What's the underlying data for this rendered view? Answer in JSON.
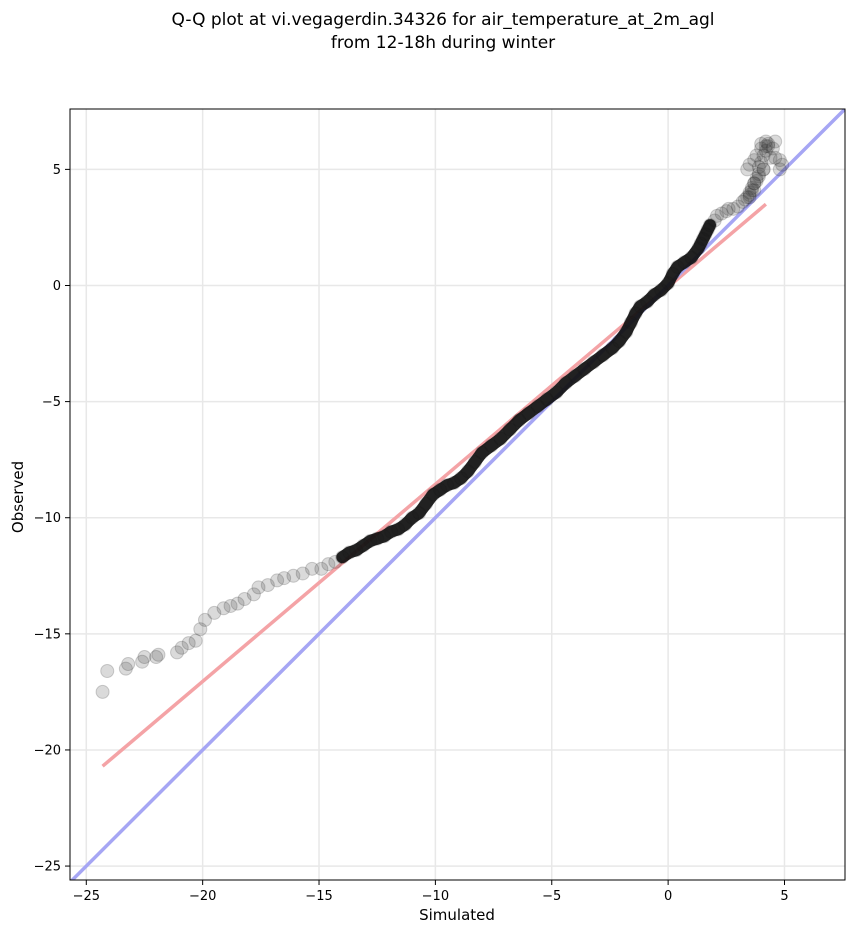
{
  "chart_data": {
    "type": "scatter",
    "title_lines": [
      "Q-Q plot at vi.vegagerdin.34326 for air_temperature_at_2m_agl",
      "from 12-18h during winter"
    ],
    "xlabel": "Simulated",
    "ylabel": "Observed",
    "xlim": [
      -25.7,
      7.6
    ],
    "ylim": [
      -25.6,
      7.6
    ],
    "xticks": [
      -25,
      -20,
      -15,
      -10,
      -5,
      0,
      5
    ],
    "yticks": [
      -25,
      -20,
      -15,
      -10,
      -5,
      0,
      5
    ],
    "xtick_labels": [
      "−25",
      "−20",
      "−15",
      "−10",
      "−5",
      "0",
      "5"
    ],
    "ytick_labels": [
      "−25",
      "−20",
      "−15",
      "−10",
      "−5",
      "0",
      "5"
    ],
    "grid": true,
    "series": [
      {
        "kind": "quantile-points",
        "color": "#333333",
        "points": [
          [
            -24.3,
            -17.5
          ],
          [
            -24.1,
            -16.6
          ],
          [
            -23.3,
            -16.5
          ],
          [
            -23.2,
            -16.3
          ],
          [
            -22.6,
            -16.2
          ],
          [
            -22.5,
            -16.0
          ],
          [
            -22.0,
            -16.0
          ],
          [
            -21.9,
            -15.9
          ],
          [
            -21.1,
            -15.8
          ],
          [
            -20.9,
            -15.6
          ],
          [
            -20.6,
            -15.4
          ],
          [
            -20.3,
            -15.3
          ],
          [
            -20.1,
            -14.8
          ],
          [
            -19.9,
            -14.4
          ],
          [
            -19.5,
            -14.1
          ],
          [
            -19.1,
            -13.9
          ],
          [
            -18.8,
            -13.8
          ],
          [
            -18.5,
            -13.7
          ],
          [
            -18.2,
            -13.5
          ],
          [
            -17.8,
            -13.3
          ],
          [
            -17.6,
            -13.0
          ],
          [
            -17.2,
            -12.9
          ],
          [
            -16.8,
            -12.7
          ],
          [
            -16.5,
            -12.6
          ],
          [
            -16.1,
            -12.5
          ],
          [
            -15.7,
            -12.4
          ],
          [
            -15.3,
            -12.2
          ],
          [
            -14.9,
            -12.2
          ],
          [
            -14.6,
            -12.0
          ],
          [
            -14.3,
            -11.9
          ],
          [
            -14.0,
            -11.7
          ],
          [
            -13.7,
            -11.5
          ],
          [
            -13.4,
            -11.4
          ],
          [
            -13.1,
            -11.2
          ],
          [
            -12.8,
            -11.0
          ],
          [
            -12.5,
            -10.9
          ],
          [
            -12.2,
            -10.8
          ],
          [
            -11.9,
            -10.6
          ],
          [
            -11.6,
            -10.5
          ],
          [
            -11.3,
            -10.3
          ],
          [
            -11.0,
            -10.0
          ],
          [
            -10.7,
            -9.8
          ],
          [
            -10.4,
            -9.4
          ],
          [
            -10.1,
            -9.0
          ],
          [
            -9.8,
            -8.8
          ],
          [
            -9.5,
            -8.6
          ],
          [
            -9.2,
            -8.5
          ],
          [
            -8.9,
            -8.3
          ],
          [
            -8.6,
            -8.0
          ],
          [
            -8.3,
            -7.6
          ],
          [
            -8.0,
            -7.2
          ],
          [
            -7.6,
            -6.9
          ],
          [
            -7.2,
            -6.6
          ],
          [
            -6.8,
            -6.2
          ],
          [
            -6.4,
            -5.8
          ],
          [
            -6.0,
            -5.5
          ],
          [
            -5.6,
            -5.2
          ],
          [
            -5.2,
            -4.9
          ],
          [
            -4.8,
            -4.6
          ],
          [
            -4.4,
            -4.2
          ],
          [
            -4.0,
            -3.9
          ],
          [
            -3.6,
            -3.6
          ],
          [
            -3.2,
            -3.3
          ],
          [
            -2.8,
            -3.0
          ],
          [
            -2.4,
            -2.7
          ],
          [
            -2.1,
            -2.4
          ],
          [
            -1.8,
            -2.0
          ],
          [
            -1.6,
            -1.6
          ],
          [
            -1.4,
            -1.2
          ],
          [
            -1.2,
            -0.9
          ],
          [
            -0.9,
            -0.7
          ],
          [
            -0.6,
            -0.4
          ],
          [
            -0.3,
            -0.2
          ],
          [
            0.0,
            0.1
          ],
          [
            0.2,
            0.5
          ],
          [
            0.4,
            0.8
          ],
          [
            0.7,
            1.0
          ],
          [
            1.0,
            1.2
          ],
          [
            1.3,
            1.6
          ],
          [
            1.5,
            2.0
          ],
          [
            1.7,
            2.4
          ],
          [
            2.0,
            2.8
          ],
          [
            2.3,
            3.1
          ],
          [
            2.6,
            3.3
          ],
          [
            3.0,
            3.4
          ],
          [
            3.3,
            3.7
          ],
          [
            3.5,
            4.0
          ],
          [
            3.7,
            4.4
          ],
          [
            3.9,
            4.7
          ],
          [
            3.8,
            4.5
          ],
          [
            3.6,
            4.2
          ],
          [
            3.2,
            3.6
          ],
          [
            2.8,
            3.3
          ],
          [
            2.5,
            3.2
          ],
          [
            2.1,
            3.0
          ],
          [
            1.8,
            2.6
          ],
          [
            1.6,
            2.2
          ],
          [
            1.4,
            1.8
          ],
          [
            4.1,
            5.0
          ],
          [
            3.6,
            4.1
          ],
          [
            3.5,
            3.9
          ],
          [
            3.8,
            4.6
          ],
          [
            3.9,
            4.8
          ],
          [
            4.4,
            5.5
          ],
          [
            4.6,
            5.5
          ],
          [
            4.5,
            5.9
          ],
          [
            4.8,
            5.4
          ],
          [
            4.9,
            5.2
          ],
          [
            4.8,
            5.0
          ],
          [
            4.1,
            5.0
          ],
          [
            3.7,
            4.4
          ],
          [
            3.5,
            3.8
          ],
          [
            3.7,
            4.1
          ],
          [
            3.4,
            3.8
          ],
          [
            3.9,
            5.1
          ],
          [
            4.0,
            5.3
          ],
          [
            4.1,
            5.6
          ],
          [
            4.2,
            5.8
          ],
          [
            4.3,
            6.0
          ],
          [
            4.6,
            6.2
          ],
          [
            4.0,
            6.1
          ],
          [
            4.2,
            6.2
          ],
          [
            4.3,
            6.1
          ],
          [
            4.2,
            6.0
          ],
          [
            4.0,
            5.9
          ],
          [
            3.8,
            5.6
          ],
          [
            3.7,
            5.4
          ],
          [
            3.5,
            5.2
          ],
          [
            3.4,
            5.0
          ]
        ]
      },
      {
        "kind": "fit-line",
        "color": "#f4a3a6",
        "x": [
          -24.3,
          4.2
        ],
        "y": [
          -20.7,
          3.5
        ]
      },
      {
        "kind": "one-to-one-line",
        "color": "#a6a6f4",
        "x": [
          -25.7,
          7.6
        ],
        "y": [
          -25.7,
          7.6
        ]
      }
    ]
  }
}
